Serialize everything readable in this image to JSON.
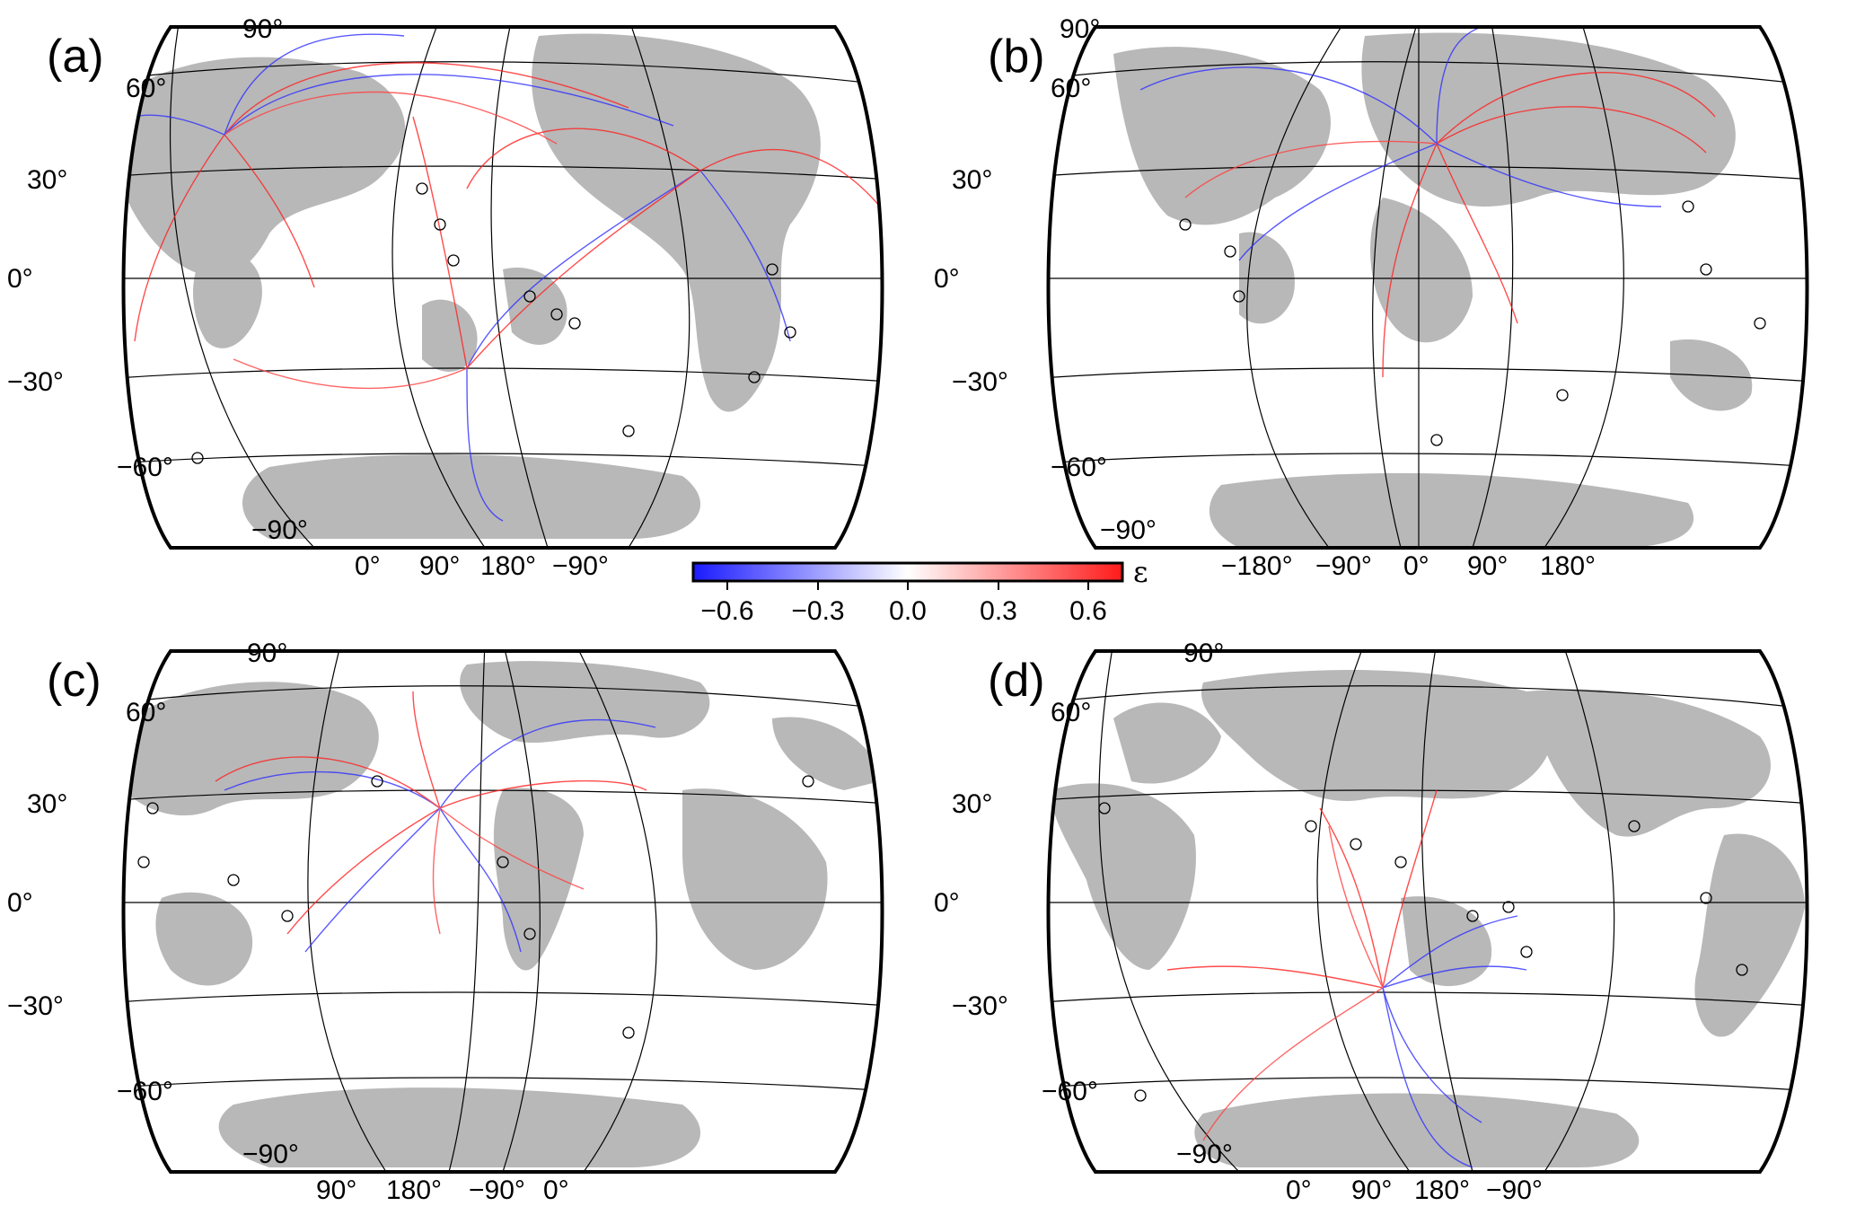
{
  "colors": {
    "land": "#b8b8b8",
    "grid": "#000000",
    "negative": "#2020ff",
    "positive": "#ff2020",
    "station_stroke": "#000000"
  },
  "colorbar": {
    "symbol": "ε",
    "ticks": [
      "−0.6",
      "−0.3",
      "0.0",
      "0.3",
      "0.6"
    ],
    "range": [
      -0.7,
      0.7
    ]
  },
  "panels": [
    {
      "label": "(a)",
      "projection": "Robinson / oblique (rotated)",
      "lat_labels": [
        "90°",
        "60°",
        "30°",
        "0°",
        "−30°",
        "−60°",
        "−90°"
      ],
      "lon_labels": [
        "0°",
        "90°",
        "180°",
        "−90°"
      ]
    },
    {
      "label": "(b)",
      "projection": "Robinson / oblique (rotated)",
      "lat_labels": [
        "90°",
        "60°",
        "30°",
        "0°",
        "−30°",
        "−60°",
        "−90°"
      ],
      "lon_labels": [
        "−180°",
        "−90°",
        "0°",
        "90°",
        "180°"
      ]
    },
    {
      "label": "(c)",
      "projection": "Robinson / oblique (rotated)",
      "lat_labels": [
        "90°",
        "60°",
        "30°",
        "0°",
        "−30°",
        "−60°",
        "−90°"
      ],
      "lon_labels": [
        "90°",
        "180°",
        "−90°",
        "0°"
      ]
    },
    {
      "label": "(d)",
      "projection": "Robinson / oblique (rotated)",
      "lat_labels": [
        "90°",
        "60°",
        "30°",
        "0°",
        "−30°",
        "−60°",
        "−90°"
      ],
      "lon_labels": [
        "0°",
        "90°",
        "180°",
        "−90°"
      ]
    }
  ]
}
